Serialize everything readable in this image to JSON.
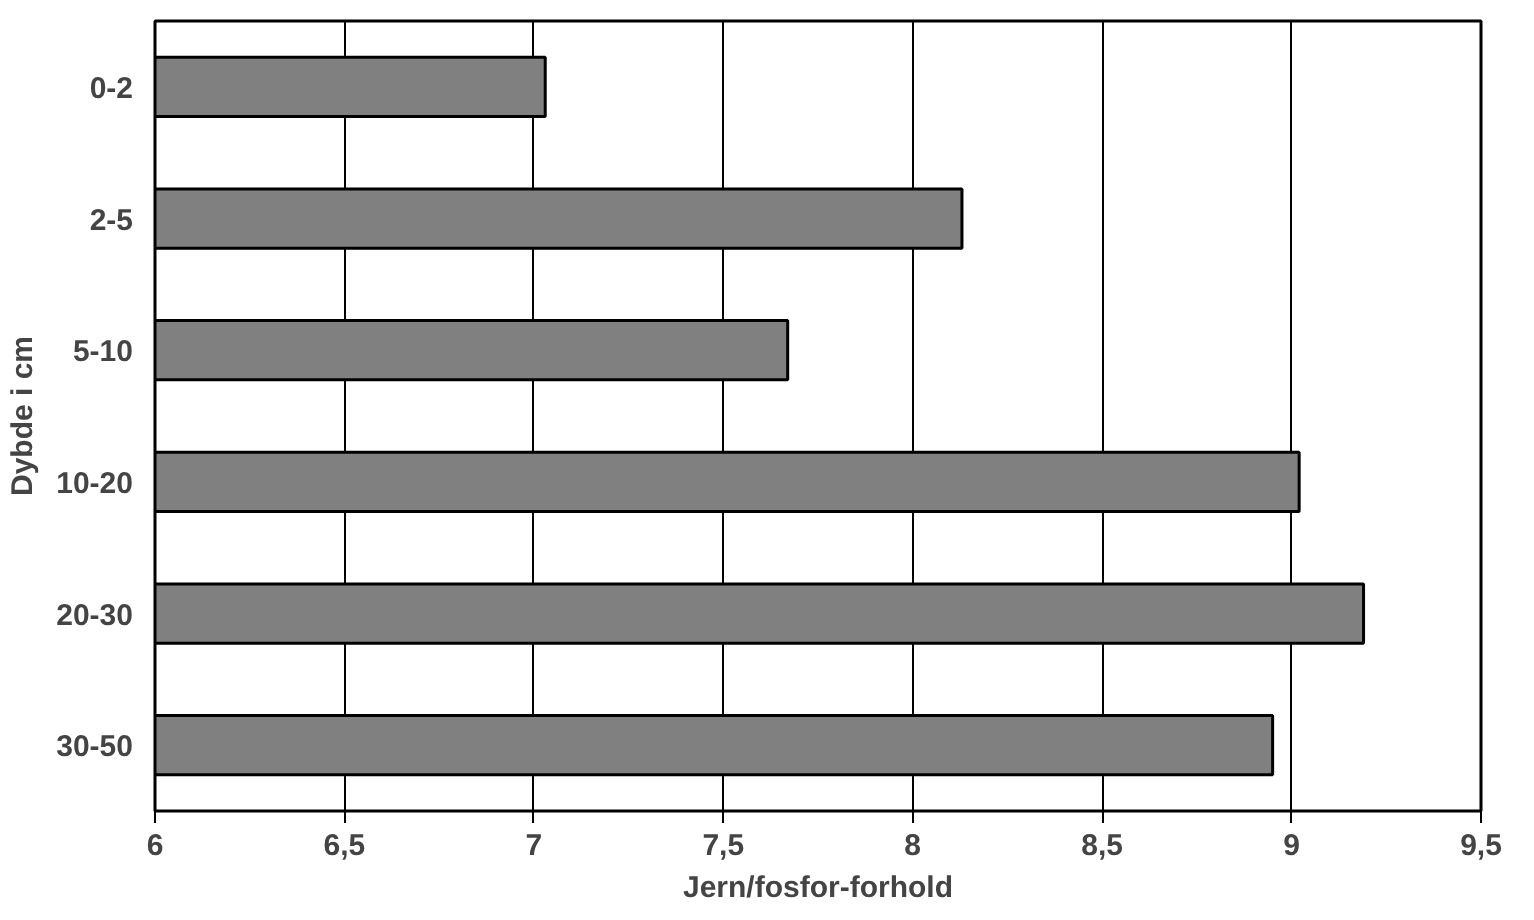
{
  "chart_data": {
    "type": "bar",
    "orientation": "horizontal",
    "xlabel": "Jern/fosfor-forhold",
    "ylabel": "Dybde i cm",
    "categories": [
      "0-2",
      "2-5",
      "5-10",
      "10-20",
      "20-30",
      "30-50"
    ],
    "values": [
      7.03,
      8.13,
      7.67,
      9.02,
      9.19,
      8.95
    ],
    "color": "#808080",
    "xlim": [
      6,
      9.5
    ],
    "xticks": [
      6,
      {
        "value": 6.5,
        "label": "6,5"
      },
      7,
      {
        "value": 7.5,
        "label": "7,5"
      },
      8,
      {
        "value": 8.5,
        "label": "8,5"
      },
      9,
      {
        "value": 9.5,
        "label": "9,5"
      }
    ],
    "grid": "x"
  }
}
